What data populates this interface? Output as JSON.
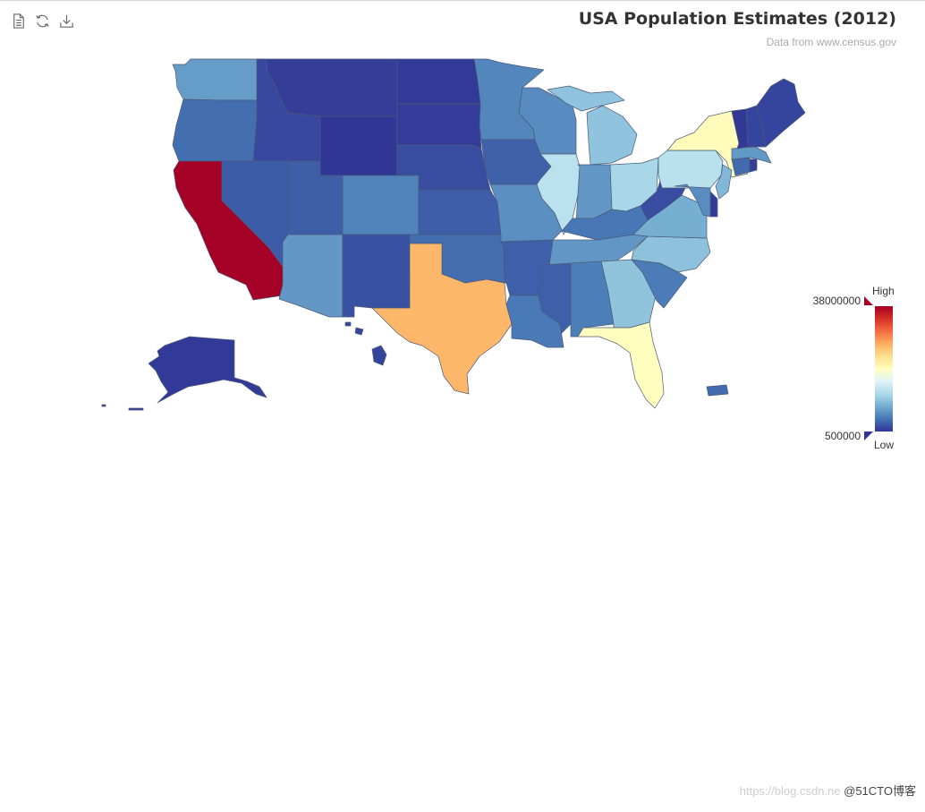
{
  "toolbox": {
    "items": [
      {
        "name": "data-view",
        "icon": "document-icon"
      },
      {
        "name": "restore",
        "icon": "refresh-icon"
      },
      {
        "name": "save-as-image",
        "icon": "download-icon"
      }
    ]
  },
  "title": "USA Population Estimates (2012)",
  "subtitle": "Data from www.census.gov",
  "visual_map": {
    "max": 38000000,
    "min": 500000,
    "max_label": "38000000",
    "min_label": "500000",
    "text_high": "High",
    "text_low": "Low",
    "colors": [
      "#313695",
      "#4575b4",
      "#74add1",
      "#abd9e9",
      "#e0f3f8",
      "#ffffbf",
      "#fee090",
      "#fdae61",
      "#f46d43",
      "#d73027",
      "#a50026"
    ]
  },
  "map_data": [
    {
      "name": "Alabama",
      "value": 4822023
    },
    {
      "name": "Alaska",
      "value": 731449
    },
    {
      "name": "Arizona",
      "value": 6553255
    },
    {
      "name": "Arkansas",
      "value": 2949131
    },
    {
      "name": "California",
      "value": 38041430
    },
    {
      "name": "Colorado",
      "value": 5187582
    },
    {
      "name": "Connecticut",
      "value": 3590347
    },
    {
      "name": "Delaware",
      "value": 917092
    },
    {
      "name": "District of Columbia",
      "value": 632323
    },
    {
      "name": "Florida",
      "value": 19317568
    },
    {
      "name": "Georgia",
      "value": 9919945
    },
    {
      "name": "Hawaii",
      "value": 1392313
    },
    {
      "name": "Idaho",
      "value": 1595728
    },
    {
      "name": "Illinois",
      "value": 12875255
    },
    {
      "name": "Indiana",
      "value": 6537334
    },
    {
      "name": "Iowa",
      "value": 3074186
    },
    {
      "name": "Kansas",
      "value": 2885905
    },
    {
      "name": "Kentucky",
      "value": 4380415
    },
    {
      "name": "Louisiana",
      "value": 4601893
    },
    {
      "name": "Maine",
      "value": 1329192
    },
    {
      "name": "Maryland",
      "value": 5884563
    },
    {
      "name": "Massachusetts",
      "value": 6646144
    },
    {
      "name": "Michigan",
      "value": 9883360
    },
    {
      "name": "Minnesota",
      "value": 5379139
    },
    {
      "name": "Mississippi",
      "value": 2984926
    },
    {
      "name": "Missouri",
      "value": 6021988
    },
    {
      "name": "Montana",
      "value": 1005141
    },
    {
      "name": "Nebraska",
      "value": 1855525
    },
    {
      "name": "Nevada",
      "value": 2758931
    },
    {
      "name": "New Hampshire",
      "value": 1320718
    },
    {
      "name": "New Jersey",
      "value": 8864590
    },
    {
      "name": "New Mexico",
      "value": 2085538
    },
    {
      "name": "New York",
      "value": 19570261
    },
    {
      "name": "North Carolina",
      "value": 9752073
    },
    {
      "name": "North Dakota",
      "value": 699628
    },
    {
      "name": "Ohio",
      "value": 11544225
    },
    {
      "name": "Oklahoma",
      "value": 3814820
    },
    {
      "name": "Oregon",
      "value": 3899353
    },
    {
      "name": "Pennsylvania",
      "value": 12763536
    },
    {
      "name": "Rhode Island",
      "value": 1050292
    },
    {
      "name": "South Carolina",
      "value": 4723723
    },
    {
      "name": "South Dakota",
      "value": 833354
    },
    {
      "name": "Tennessee",
      "value": 6456243
    },
    {
      "name": "Texas",
      "value": 26059203
    },
    {
      "name": "Utah",
      "value": 2855287
    },
    {
      "name": "Vermont",
      "value": 626011
    },
    {
      "name": "Virginia",
      "value": 8185867
    },
    {
      "name": "Washington",
      "value": 6897012
    },
    {
      "name": "West Virginia",
      "value": 1855413
    },
    {
      "name": "Wisconsin",
      "value": 5726398
    },
    {
      "name": "Wyoming",
      "value": 576412
    },
    {
      "name": "Puerto Rico",
      "value": 3667084
    }
  ],
  "watermark": {
    "left": "https://blog.csdn.ne",
    "right": "@51CTO博客"
  }
}
